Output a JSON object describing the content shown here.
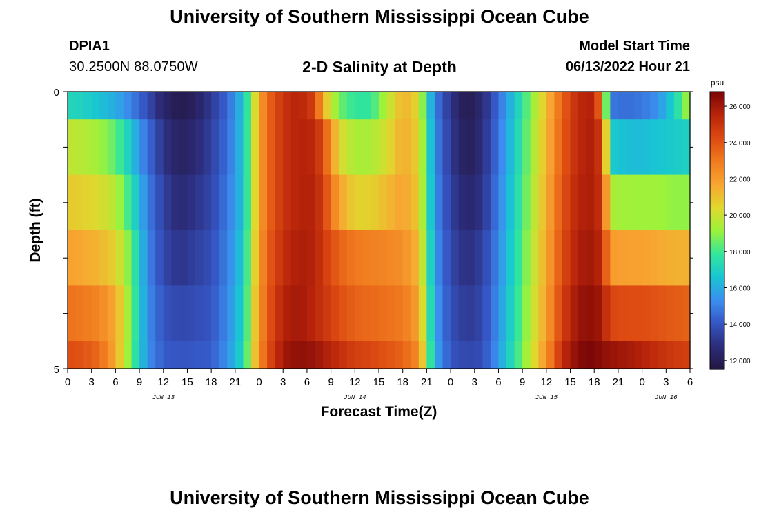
{
  "header": {
    "title": "University of Southern Mississippi Ocean Cube",
    "station_id": "DPIA1",
    "coords": "30.2500N  88.0750W",
    "chart_title": "2-D Salinity at Depth",
    "model_start_label": "Model Start Time",
    "model_start_value": "06/13/2022 Hour 21"
  },
  "footer": {
    "title": "University of Southern Mississippi Ocean Cube"
  },
  "chart_data": {
    "type": "heatmap",
    "title": "2-D Salinity at Depth",
    "xlabel": "Forecast Time(Z)",
    "ylabel": "Depth (ft)",
    "ylim": [
      0,
      5
    ],
    "y_tick_labels": [
      "0",
      "5"
    ],
    "x_tick_labels": [
      "0",
      "3",
      "6",
      "9",
      "12",
      "15",
      "18",
      "21",
      "0",
      "3",
      "6",
      "9",
      "12",
      "15",
      "18",
      "21",
      "0",
      "3",
      "6",
      "9",
      "12",
      "15",
      "18",
      "21",
      "0",
      "3",
      "6"
    ],
    "date_labels": [
      {
        "label": "JUN 13",
        "hour": 12
      },
      {
        "label": "JUN 14",
        "hour": 36
      },
      {
        "label": "JUN 15",
        "hour": 60
      },
      {
        "label": "JUN 16",
        "hour": 75
      }
    ],
    "x_range_hours": [
      0,
      78
    ],
    "depth_layers": [
      "0-0.5",
      "0.5-1.5",
      "1.5-2.5",
      "2.5-3.5",
      "3.5-4.5",
      "4.5-5"
    ],
    "salinity_keyframes": [
      {
        "hour": 0,
        "layers": [
          17.2,
          19.8,
          20.8,
          21.8,
          23.2,
          24.2
        ]
      },
      {
        "hour": 2,
        "layers": [
          17.0,
          19.6,
          20.6,
          21.6,
          23.0,
          24.0
        ]
      },
      {
        "hour": 4,
        "layers": [
          16.5,
          19.2,
          20.3,
          21.3,
          22.6,
          23.4
        ]
      },
      {
        "hour": 6,
        "layers": [
          16.0,
          18.4,
          19.6,
          20.6,
          21.6,
          21.6
        ]
      },
      {
        "hour": 8,
        "layers": [
          15.0,
          16.6,
          17.6,
          18.4,
          18.6,
          18.4
        ]
      },
      {
        "hour": 10,
        "layers": [
          13.8,
          14.6,
          15.0,
          15.2,
          15.3,
          15.4
        ]
      },
      {
        "hour": 12,
        "layers": [
          12.4,
          13.0,
          13.4,
          13.6,
          14.0,
          14.2
        ]
      },
      {
        "hour": 14,
        "layers": [
          11.8,
          12.2,
          12.6,
          13.0,
          13.6,
          14.0
        ]
      },
      {
        "hour": 16,
        "layers": [
          12.2,
          12.6,
          13.0,
          13.4,
          13.8,
          14.1
        ]
      },
      {
        "hour": 18,
        "layers": [
          13.2,
          13.4,
          13.6,
          13.8,
          14.0,
          14.2
        ]
      },
      {
        "hour": 20,
        "layers": [
          14.4,
          14.6,
          14.8,
          15.0,
          15.2,
          15.4
        ]
      },
      {
        "hour": 22,
        "layers": [
          16.6,
          16.6,
          16.6,
          16.8,
          17.0,
          17.2
        ]
      },
      {
        "hour": 23,
        "layers": [
          19.0,
          19.2,
          19.2,
          19.4,
          19.6,
          19.8
        ]
      },
      {
        "hour": 24,
        "layers": [
          21.6,
          21.6,
          21.6,
          21.8,
          22.0,
          22.2
        ]
      },
      {
        "hour": 25,
        "layers": [
          23.4,
          23.4,
          23.4,
          23.6,
          23.8,
          24.0
        ]
      },
      {
        "hour": 27,
        "layers": [
          25.0,
          25.0,
          25.0,
          25.2,
          25.6,
          26.0
        ]
      },
      {
        "hour": 29,
        "layers": [
          25.6,
          25.6,
          25.6,
          25.8,
          26.0,
          26.4
        ]
      },
      {
        "hour": 31,
        "layers": [
          24.6,
          25.4,
          25.6,
          25.6,
          25.4,
          26.2
        ]
      },
      {
        "hour": 32,
        "layers": [
          21.4,
          24.2,
          24.6,
          24.8,
          25.0,
          25.8
        ]
      },
      {
        "hour": 34,
        "layers": [
          18.6,
          20.4,
          21.8,
          23.6,
          24.2,
          25.2
        ]
      },
      {
        "hour": 36,
        "layers": [
          17.8,
          19.4,
          20.6,
          23.0,
          23.6,
          24.6
        ]
      },
      {
        "hour": 38,
        "layers": [
          17.8,
          19.4,
          20.6,
          22.8,
          23.4,
          24.4
        ]
      },
      {
        "hour": 40,
        "layers": [
          19.6,
          20.2,
          21.2,
          22.6,
          23.2,
          24.0
        ]
      },
      {
        "hour": 42,
        "layers": [
          21.4,
          21.6,
          21.8,
          22.4,
          23.0,
          23.6
        ]
      },
      {
        "hour": 44,
        "layers": [
          20.4,
          20.6,
          20.8,
          21.2,
          21.8,
          22.4
        ]
      },
      {
        "hour": 45,
        "layers": [
          17.4,
          17.8,
          18.0,
          18.4,
          18.8,
          19.4
        ]
      },
      {
        "hour": 46,
        "layers": [
          15.0,
          15.2,
          15.4,
          15.6,
          15.8,
          16.0
        ]
      },
      {
        "hour": 48,
        "layers": [
          13.0,
          13.2,
          13.4,
          13.6,
          13.8,
          14.0
        ]
      },
      {
        "hour": 50,
        "layers": [
          11.8,
          12.0,
          12.4,
          12.8,
          13.2,
          13.6
        ]
      },
      {
        "hour": 52,
        "layers": [
          12.6,
          12.8,
          13.0,
          13.4,
          13.6,
          13.8
        ]
      },
      {
        "hour": 54,
        "layers": [
          14.6,
          14.8,
          15.0,
          15.2,
          15.4,
          15.6
        ]
      },
      {
        "hour": 56,
        "layers": [
          16.6,
          16.8,
          17.0,
          17.2,
          17.4,
          17.6
        ]
      },
      {
        "hour": 58,
        "layers": [
          18.8,
          19.0,
          19.2,
          19.4,
          19.6,
          19.8
        ]
      },
      {
        "hour": 60,
        "layers": [
          21.0,
          21.2,
          21.4,
          21.6,
          21.8,
          22.2
        ]
      },
      {
        "hour": 62,
        "layers": [
          23.6,
          23.8,
          24.0,
          24.2,
          24.6,
          25.2
        ]
      },
      {
        "hour": 64,
        "layers": [
          25.4,
          25.4,
          25.6,
          25.8,
          26.2,
          26.6
        ]
      },
      {
        "hour": 66,
        "layers": [
          25.6,
          25.8,
          25.8,
          26.0,
          26.4,
          26.8
        ]
      },
      {
        "hour": 67,
        "layers": [
          22.4,
          24.4,
          24.8,
          25.2,
          25.8,
          26.4
        ]
      },
      {
        "hour": 68,
        "layers": [
          14.8,
          16.8,
          19.4,
          22.0,
          24.4,
          26.2
        ]
      },
      {
        "hour": 70,
        "layers": [
          14.6,
          16.4,
          19.2,
          21.8,
          24.2,
          26.0
        ]
      },
      {
        "hour": 72,
        "layers": [
          14.8,
          16.4,
          19.2,
          21.8,
          24.2,
          25.6
        ]
      },
      {
        "hour": 74,
        "layers": [
          15.4,
          16.6,
          19.2,
          21.6,
          24.0,
          25.2
        ]
      },
      {
        "hour": 76,
        "layers": [
          17.0,
          16.8,
          19.0,
          21.4,
          23.8,
          24.8
        ]
      },
      {
        "hour": 78,
        "layers": [
          19.6,
          17.0,
          19.0,
          21.4,
          23.6,
          24.6
        ]
      }
    ],
    "colorbar": {
      "unit": "psu",
      "range": [
        11.5,
        26.8
      ],
      "tick_labels": [
        "12.000",
        "14.000",
        "16.000",
        "18.000",
        "20.000",
        "22.000",
        "24.000",
        "26.000"
      ]
    },
    "palette": [
      "#23163f",
      "#2c2c7a",
      "#3556c4",
      "#3b8ef0",
      "#18c6d2",
      "#33e69a",
      "#9df23a",
      "#e0d82e",
      "#f8a531",
      "#f07a1e",
      "#dd4a12",
      "#b8240a",
      "#7b0606"
    ]
  }
}
